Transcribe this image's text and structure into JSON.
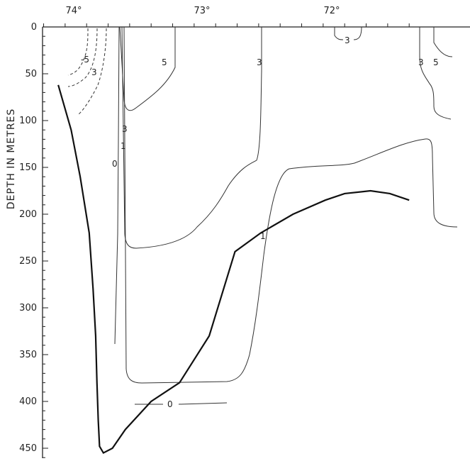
{
  "chart_data": {
    "type": "contour",
    "ylabel": "DEPTH IN METRES",
    "xlabel": "",
    "x_ticks": [
      "74°",
      "73°",
      "72°"
    ],
    "y_ticks": [
      0,
      50,
      100,
      150,
      200,
      250,
      300,
      350,
      400,
      450
    ],
    "ylim": [
      0,
      460
    ],
    "y_inverted": true,
    "xlim_longitude": [
      74.4,
      71.3
    ],
    "grid": false,
    "seafloor": [
      [
        74.12,
        62
      ],
      [
        74.02,
        110
      ],
      [
        73.95,
        160
      ],
      [
        73.88,
        220
      ],
      [
        73.85,
        280
      ],
      [
        73.83,
        330
      ],
      [
        73.82,
        380
      ],
      [
        73.81,
        420
      ],
      [
        73.8,
        448
      ],
      [
        73.77,
        455
      ],
      [
        73.7,
        450
      ],
      [
        73.6,
        430
      ],
      [
        73.4,
        400
      ],
      [
        73.18,
        380
      ],
      [
        72.95,
        330
      ],
      [
        72.75,
        240
      ],
      [
        72.55,
        220
      ],
      [
        72.3,
        200
      ],
      [
        72.05,
        185
      ],
      [
        71.9,
        178
      ],
      [
        71.7,
        175
      ],
      [
        71.55,
        178
      ],
      [
        71.4,
        185
      ]
    ],
    "contour_labels": [
      "-5",
      "3",
      "5",
      "3",
      "3",
      "1",
      "0",
      "1",
      "3",
      "5",
      "3",
      "0"
    ]
  }
}
